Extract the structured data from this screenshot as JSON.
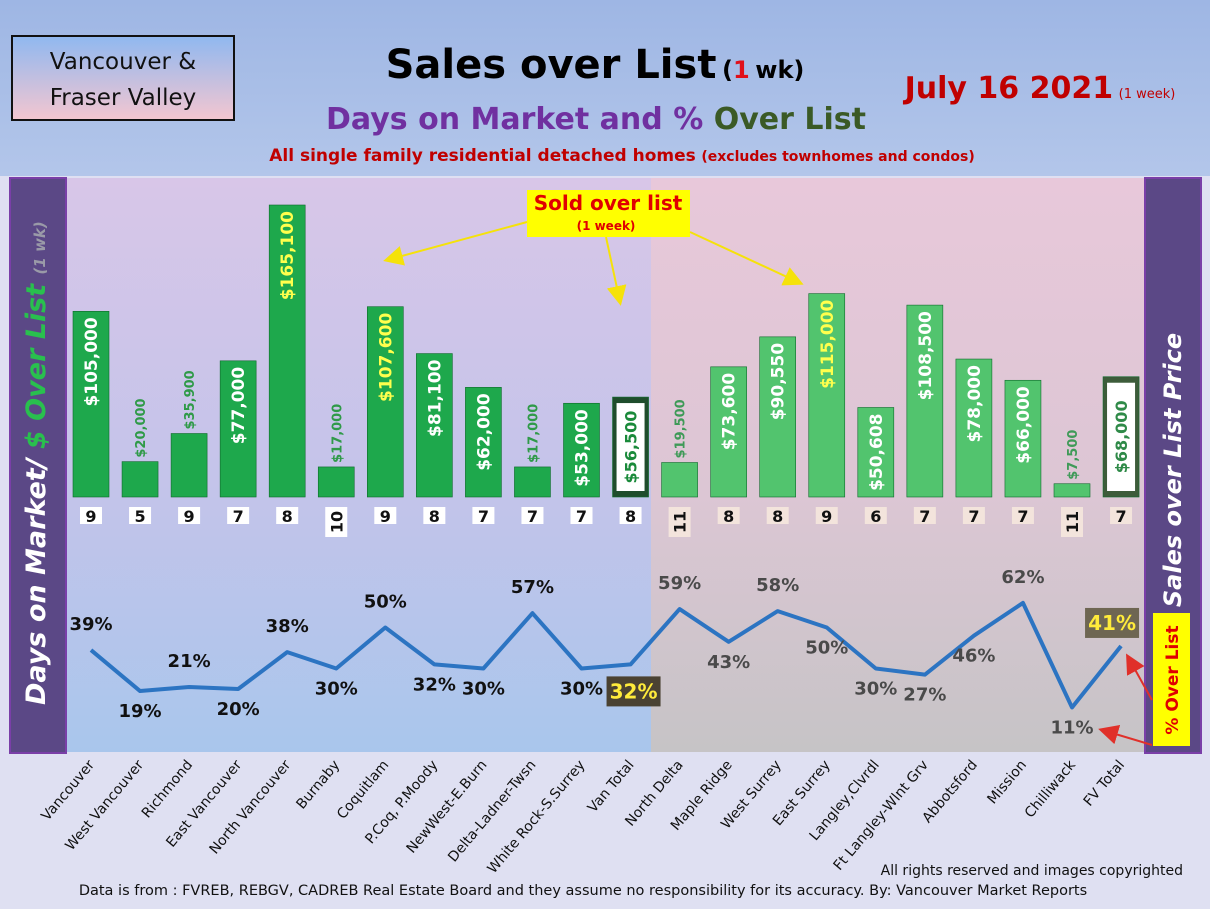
{
  "header": {
    "region_box": [
      "Vancouver &",
      "Fraser Valley"
    ],
    "title": "Sales over List",
    "title_open": "(",
    "title_num": "1",
    "title_close": "wk)",
    "subtitle_a": "Days on Market and %",
    "subtitle_b": "Over List",
    "note_a": "All single family residential detached homes",
    "note_b": "(excludes townhomes and condos)",
    "date": "July 16  2021",
    "date_note": "(1 week)"
  },
  "chart_data": {
    "type": "bar",
    "categories": [
      "Vancouver",
      "West Vancouver",
      "Richmond",
      "East Vancouver",
      "North Vancouver",
      "Burnaby",
      "Coquitlam",
      "P.Coq, P.Moody",
      "NewWest-E.Burn",
      "Delta-Ladner-Twsn",
      "White Rock-S.Surrey",
      "Van Total",
      "North Delta",
      "Maple Ridge",
      "West Surrey",
      "East Surrey",
      "Langley,Clvrdl",
      "Ft Langley-Wlnt Grv",
      "Abbotsford",
      "Mission",
      "Chilliwack",
      "FV Total"
    ],
    "series": [
      {
        "name": "Sold over list",
        "name_note": "(1 week)",
        "values": [
          105000,
          20000,
          35900,
          77000,
          165100,
          17000,
          107600,
          81100,
          62000,
          17000,
          53000,
          56500,
          19500,
          73600,
          90550,
          115000,
          50608,
          108500,
          78000,
          66000,
          7500,
          68000
        ],
        "value_labels": [
          "$105,000",
          "$20,000",
          "$35,900",
          "$77,000",
          "$165,100",
          "$17,000",
          "$107,600",
          "$81,100",
          "$62,000",
          "$17,000",
          "$53,000",
          "$56,500",
          "$19,500",
          "$73,600",
          "$90,550",
          "$115,000",
          "$50,608",
          "$108,500",
          "$78,000",
          "$66,000",
          "$7,500",
          "$68,000"
        ],
        "colors": [
          "#1ea84c",
          "#1ea84c",
          "#1ea84c",
          "#1ea84c",
          "#1ea84c",
          "#1ea84c",
          "#1ea84c",
          "#1ea84c",
          "#1ea84c",
          "#1ea84c",
          "#1ea84c",
          "#1f4d2c",
          "#52c46e",
          "#52c46e",
          "#52c46e",
          "#52c46e",
          "#52c46e",
          "#52c46e",
          "#52c46e",
          "#52c46e",
          "#52c46e",
          "#3d5c3a"
        ],
        "label_colors": [
          "#ffffff",
          "#2f9a48",
          "#2f9a48",
          "#ffffff",
          "#ffff4d",
          "#2f9a48",
          "#ffff4d",
          "#ffffff",
          "#ffffff",
          "#2f9a48",
          "#ffffff",
          "#1a8a3a",
          "#3f9a58",
          "#ffffff",
          "#ffffff",
          "#ffff4d",
          "#ffffff",
          "#ffffff",
          "#ffffff",
          "#ffffff",
          "#3f9a58",
          "#2f8a48"
        ],
        "label_backgrounds": [
          null,
          null,
          null,
          null,
          null,
          null,
          null,
          null,
          null,
          null,
          null,
          "#ffffff",
          null,
          null,
          null,
          null,
          null,
          null,
          null,
          null,
          null,
          "#ffffff"
        ]
      },
      {
        "name": "% Over List",
        "type": "line",
        "color": "#2c74c2",
        "values": [
          39,
          19,
          21,
          20,
          38,
          30,
          50,
          32,
          30,
          57,
          30,
          32,
          59,
          43,
          58,
          50,
          30,
          27,
          46,
          62,
          11,
          41
        ],
        "value_labels": [
          "39%",
          "19%",
          "21%",
          "20%",
          "38%",
          "30%",
          "50%",
          "32%",
          "30%",
          "57%",
          "30%",
          "32%",
          "59%",
          "43%",
          "58%",
          "50%",
          "30%",
          "27%",
          "46%",
          "62%",
          "11%",
          "41%"
        ],
        "label_colors": [
          "#111111",
          "#111111",
          "#111111",
          "#111111",
          "#111111",
          "#111111",
          "#111111",
          "#111111",
          "#111111",
          "#111111",
          "#111111",
          "#ffeb3b",
          "#4a4a4a",
          "#4a4a4a",
          "#4a4a4a",
          "#4a4a4a",
          "#4a4a4a",
          "#4a4a4a",
          "#4a4a4a",
          "#4a4a4a",
          "#4a4a4a",
          "#ffeb3b"
        ],
        "label_backgrounds": [
          null,
          null,
          null,
          null,
          null,
          null,
          null,
          null,
          null,
          null,
          null,
          "#4a4232",
          null,
          null,
          null,
          null,
          null,
          null,
          null,
          null,
          null,
          "#6e6652"
        ]
      }
    ],
    "days_on_market": [
      9,
      5,
      9,
      7,
      8,
      10,
      9,
      8,
      7,
      7,
      7,
      8,
      11,
      8,
      8,
      9,
      6,
      7,
      7,
      7,
      11,
      7
    ],
    "left_label": {
      "a": "Days on Market/",
      "b": "$ Over List",
      "c": "(1 wk)"
    },
    "right_label": "Sales over List Price"
  },
  "footer": {
    "rights": "All rights reserved and  images copyrighted",
    "source": "Data is from : FVREB, REBGV, CADREB Real Estate Board and they assume no responsibility for its accuracy. By: Vancouver Market Reports"
  }
}
